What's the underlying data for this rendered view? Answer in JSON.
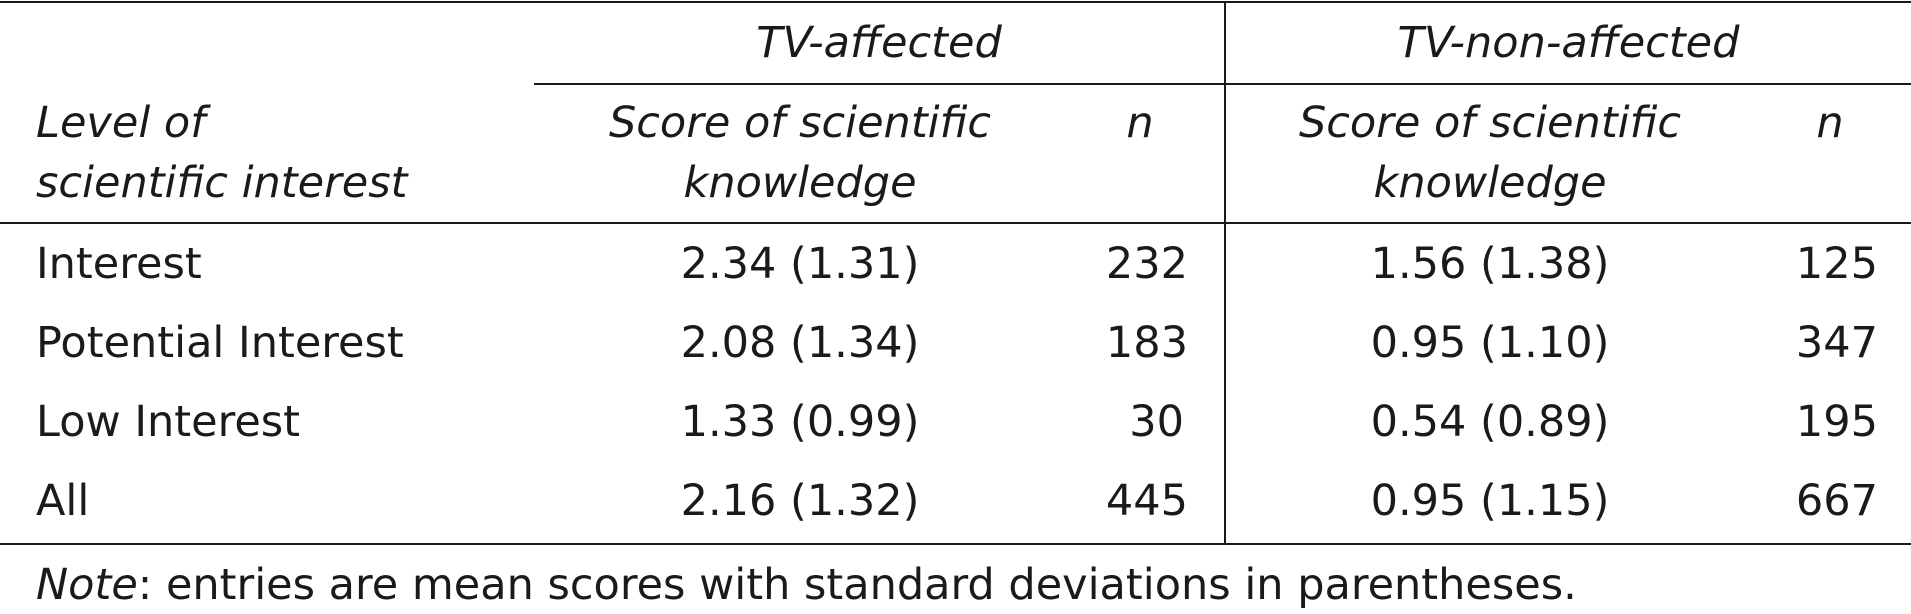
{
  "table": {
    "group_headers": {
      "affected": "TV-affected",
      "non_affected": "TV-non-affected"
    },
    "column_headers": {
      "level_line1": "Level of",
      "level_line2": "scientific interest",
      "score_line1": "Score of scientific",
      "score_line2": "knowledge",
      "n": "n"
    },
    "rows": [
      {
        "level": "Interest",
        "aff_score": "2.34 (1.31)",
        "aff_n": "232",
        "non_score": "1.56 (1.38)",
        "non_n": "125"
      },
      {
        "level": "Potential Interest",
        "aff_score": "2.08 (1.34)",
        "aff_n": "183",
        "non_score": "0.95 (1.10)",
        "non_n": "347"
      },
      {
        "level": "Low Interest",
        "aff_score": "1.33 (0.99)",
        "aff_n": "30",
        "non_score": "0.54 (0.89)",
        "non_n": "195"
      },
      {
        "level": "All",
        "aff_score": "2.16 (1.32)",
        "aff_n": "445",
        "non_score": "0.95 (1.15)",
        "non_n": "667"
      }
    ],
    "note": {
      "label": "Note",
      "text": ": entries are mean scores with standard deviations in parentheses."
    }
  }
}
